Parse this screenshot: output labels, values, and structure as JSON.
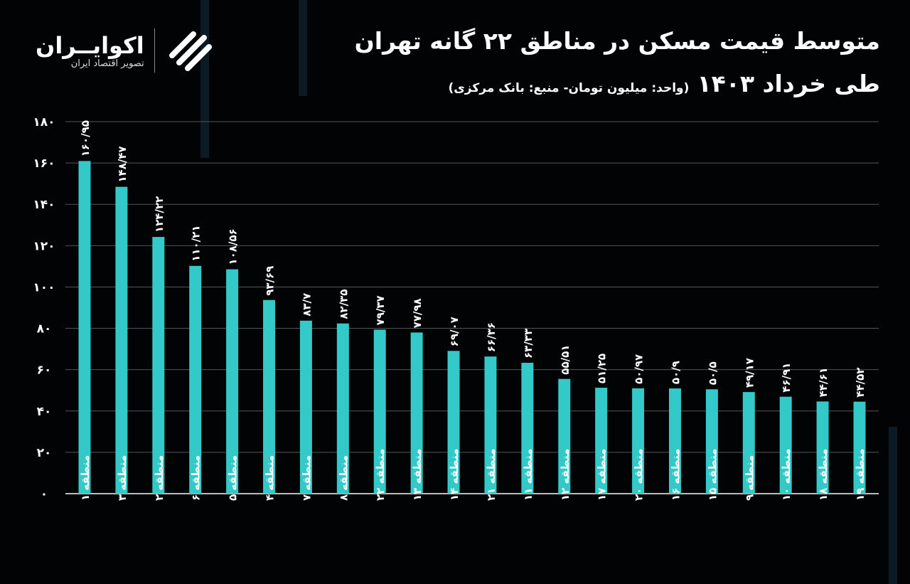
{
  "header": {
    "title": "متوسط قیمت مسکن در مناطق ۲۲ گانه تهران",
    "subtitle": "طی خرداد ۱۴۰۳",
    "note": "(واحد: میلیون تومان- منبع: بانک مرکزی)"
  },
  "logo": {
    "name": "اکوایــران",
    "tagline": "تصویر اقتصاد ایران"
  },
  "colors": {
    "bar": "#33c9c9",
    "background": "#020304",
    "grid": "#555555",
    "text": "#ffffff"
  },
  "chart_data": {
    "type": "bar",
    "title": "متوسط قیمت مسکن در مناطق ۲۲ گانه تهران طی خرداد ۱۴۰۳",
    "ylabel": "",
    "xlabel": "",
    "ylim": [
      0,
      180
    ],
    "yticks": [
      0,
      20,
      40,
      60,
      80,
      100,
      120,
      140,
      160,
      180
    ],
    "ytick_labels": [
      "۰",
      "۲۰",
      "۴۰",
      "۶۰",
      "۸۰",
      "۱۰۰",
      "۱۲۰",
      "۱۴۰",
      "۱۶۰",
      "۱۸۰"
    ],
    "grid": true,
    "categories": [
      "منطقه ۱",
      "منطقه ۳",
      "منطقه ۲",
      "منطقه ۶",
      "منطقه ۵",
      "منطقه ۴",
      "منطقه ۷",
      "منطقه ۸",
      "منطقه ۲۲",
      "منطقه ۱۳",
      "منطقه ۱۴",
      "منطقه ۲۱",
      "منطقه ۱۱",
      "منطقه ۱۲",
      "منطقه ۱۷",
      "منطقه ۲۰",
      "منطقه ۱۶",
      "منطقه ۱۵",
      "منطقه ۹",
      "منطقه ۱۰",
      "منطقه ۱۸",
      "منطقه ۱۹"
    ],
    "values": [
      160.95,
      148.47,
      124.22,
      110.21,
      108.56,
      93.69,
      83.7,
      82.35,
      79.37,
      77.98,
      69.07,
      66.36,
      63.33,
      55.51,
      51.25,
      50.97,
      50.9,
      50.5,
      49.17,
      46.91,
      44.61,
      44.52
    ],
    "data_labels": [
      "۱۶۰/۹۵",
      "۱۴۸/۴۷",
      "۱۲۴/۲۲",
      "۱۱۰/۲۱",
      "۱۰۸/۵۶",
      "۹۳/۶۹",
      "۸۳/۷",
      "۸۲/۳۵",
      "۷۹/۳۷",
      "۷۷/۹۸",
      "۶۹/۰۷",
      "۶۶/۳۶",
      "۶۳/۳۳",
      "۵۵/۵۱",
      "۵۱/۲۵",
      "۵۰/۹۷",
      "۵۰/۹",
      "۵۰/۵",
      "۴۹/۱۷",
      "۴۶/۹۱",
      "۴۴/۶۱",
      "۴۴/۵۲"
    ]
  }
}
